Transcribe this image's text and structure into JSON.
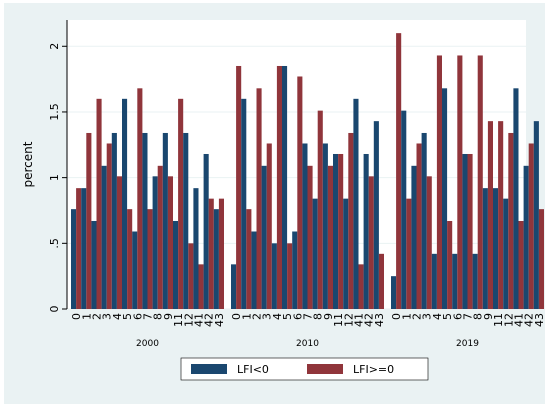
{
  "chart_data": {
    "type": "bar",
    "title": "",
    "xlabel": "",
    "ylabel": "percent",
    "ylim": [
      0,
      2.2
    ],
    "yticks": [
      0,
      0.5,
      1,
      1.5,
      2
    ],
    "ytick_labels": [
      "0",
      ".5",
      "1",
      "1.5",
      "2"
    ],
    "grid": true,
    "legend_position": "bottom",
    "groups": [
      {
        "label": "2000",
        "categories": [
          "0",
          "1",
          "2",
          "3",
          "4",
          "5",
          "6",
          "7",
          "8",
          "9",
          "11",
          "12",
          "41",
          "42",
          "43"
        ],
        "series": [
          {
            "name": "LFI<0",
            "values": [
              0.76,
              0.92,
              0.67,
              1.09,
              1.34,
              1.6,
              0.59,
              1.34,
              1.01,
              1.34,
              0.67,
              1.34,
              0.92,
              1.18,
              0.76
            ]
          },
          {
            "name": "LFI>=0",
            "values": [
              0.92,
              1.34,
              1.6,
              1.26,
              1.01,
              0.76,
              1.68,
              0.76,
              1.09,
              1.01,
              1.6,
              0.5,
              0.34,
              0.84,
              0.84
            ]
          }
        ]
      },
      {
        "label": "2010",
        "categories": [
          "0",
          "1",
          "2",
          "3",
          "4",
          "5",
          "6",
          "7",
          "8",
          "9",
          "11",
          "12",
          "41",
          "42",
          "43"
        ],
        "series": [
          {
            "name": "LFI<0",
            "values": [
              0.34,
              1.6,
              0.59,
              1.09,
              0.5,
              1.85,
              0.59,
              1.26,
              0.84,
              1.26,
              1.18,
              0.84,
              1.6,
              1.18,
              1.43
            ]
          },
          {
            "name": "LFI>=0",
            "values": [
              1.85,
              0.76,
              1.68,
              1.26,
              1.85,
              0.5,
              1.77,
              1.09,
              1.51,
              1.09,
              1.18,
              1.34,
              0.34,
              1.01,
              0.42
            ]
          }
        ]
      },
      {
        "label": "2019",
        "categories": [
          "0",
          "1",
          "2",
          "3",
          "4",
          "5",
          "6",
          "7",
          "8",
          "9",
          "11",
          "12",
          "41",
          "42",
          "43"
        ],
        "series": [
          {
            "name": "LFI<0",
            "values": [
              0.25,
              1.51,
              1.09,
              1.34,
              0.42,
              1.68,
              0.42,
              1.18,
              0.42,
              0.92,
              0.92,
              0.84,
              1.68,
              1.09,
              1.43
            ]
          },
          {
            "name": "LFI>=0",
            "values": [
              2.1,
              0.84,
              1.26,
              1.01,
              1.93,
              0.67,
              1.93,
              1.18,
              1.93,
              1.43,
              1.43,
              1.34,
              0.67,
              1.26,
              0.76
            ]
          }
        ]
      }
    ],
    "colors": {
      "LFI<0": "#1a476f",
      "LFI>=0": "#90353b"
    }
  },
  "legend": {
    "items": [
      {
        "label": "LFI<0",
        "color": "#1a476f"
      },
      {
        "label": "LFI>=0",
        "color": "#90353b"
      }
    ]
  }
}
